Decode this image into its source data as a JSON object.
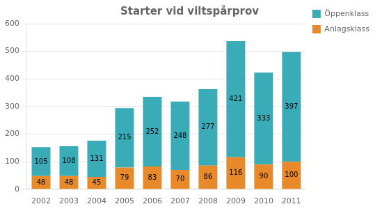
{
  "chart_data": {
    "type": "bar",
    "title": "Starter vid viltspårprov",
    "categories": [
      "2002",
      "2003",
      "2004",
      "2005",
      "2006",
      "2007",
      "2008",
      "2009",
      "2010",
      "2011"
    ],
    "series": [
      {
        "name": "Anlagsklass",
        "color": "#E8892A",
        "values": [
          48,
          48,
          45,
          79,
          83,
          70,
          86,
          116,
          90,
          100
        ]
      },
      {
        "name": "Öppenklass",
        "color": "#3AACB8",
        "values": [
          105,
          108,
          131,
          215,
          252,
          248,
          277,
          421,
          333,
          397
        ]
      }
    ],
    "stacked": true,
    "ylim": [
      0,
      600
    ],
    "yticks": [
      0,
      100,
      200,
      300,
      400,
      500,
      600
    ],
    "grid": true,
    "legend": "upper right",
    "data_labels": true
  }
}
